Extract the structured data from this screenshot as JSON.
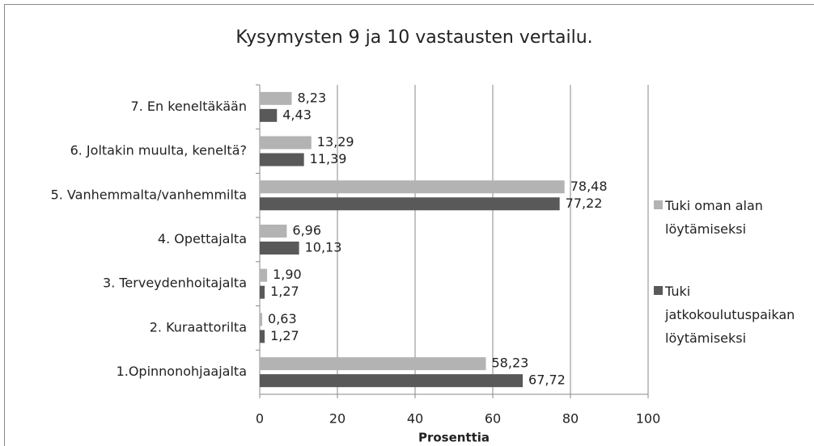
{
  "chart_data": {
    "type": "bar",
    "orientation": "horizontal",
    "title": "Kysymysten 9 ja 10 vastausten vertailu.",
    "x_label": "Prosenttia",
    "categories": [
      "7. En keneltäkään",
      "6. Joltakin muulta, keneltä?",
      "5. Vanhemmalta/vanhemmilta",
      "4. Opettajalta",
      "3. Terveydenhoitajalta",
      "2. Kuraattorilta",
      "1.Opinnonohjaajalta"
    ],
    "series": [
      {
        "name": "Tuki oman alan löytämiseksi",
        "color": "#b3b3b3",
        "values": [
          8.23,
          13.29,
          78.48,
          6.96,
          1.9,
          0.63,
          58.23
        ],
        "value_labels": [
          "8,23",
          "13,29",
          "78,48",
          "6,96",
          "1,90",
          "0,63",
          "58,23"
        ]
      },
      {
        "name": "Tuki jatkokoulutuspaikan löytämiseksi",
        "color": "#595959",
        "values": [
          4.43,
          11.39,
          77.22,
          10.13,
          1.27,
          1.27,
          67.72
        ],
        "value_labels": [
          "4,43",
          "11,39",
          "77,22",
          "10,13",
          "1,27",
          "1,27",
          "67,72"
        ]
      }
    ],
    "xlim": [
      0,
      100
    ],
    "xticks": [
      0,
      20,
      40,
      60,
      80,
      100
    ],
    "grid": true,
    "legend": "right"
  }
}
